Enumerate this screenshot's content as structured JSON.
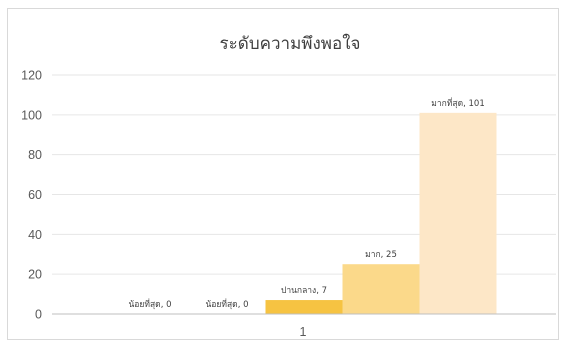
{
  "chart_data": {
    "type": "bar",
    "title": "ระดับความพึงพอใจ",
    "categories": [
      "1"
    ],
    "series": [
      {
        "name": "น้อยที่สุด",
        "values": [
          0
        ],
        "color": "#fff6df"
      },
      {
        "name": "น้อยที่สุด",
        "values": [
          0
        ],
        "color": "#fff1d0"
      },
      {
        "name": "ปานกลาง",
        "values": [
          7
        ],
        "color": "#f6c342"
      },
      {
        "name": "มาก",
        "values": [
          25
        ],
        "color": "#fbd98a"
      },
      {
        "name": "มากที่สุด",
        "values": [
          101
        ],
        "color": "#fde7c7"
      }
    ],
    "data_labels": [
      "น้อยที่สุด, 0",
      "น้อยที่สุด, 0",
      "ปานกลาง, 7",
      "มาก, 25",
      "มากที่สุด, 101"
    ],
    "y_ticks": [
      "0",
      "20",
      "40",
      "60",
      "80",
      "100",
      "120"
    ],
    "ylim": [
      0,
      120
    ],
    "grid": true,
    "gridline_color": "#e6e6e6",
    "legend": "none"
  }
}
